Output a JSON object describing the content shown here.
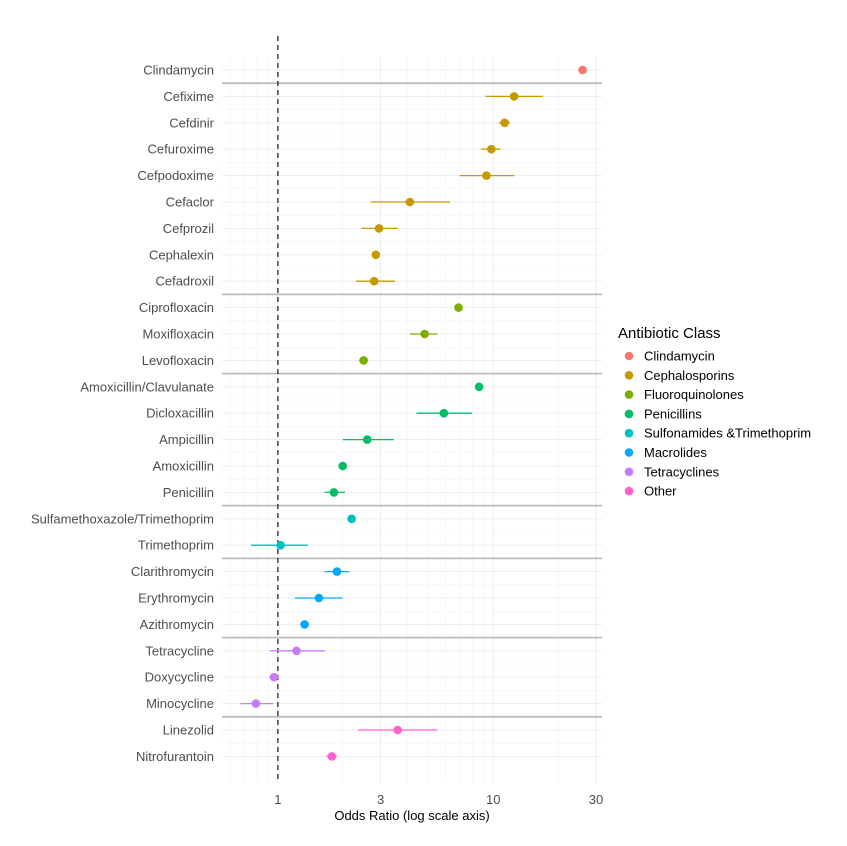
{
  "chart_data": {
    "type": "scatter",
    "subtype": "forest-plot",
    "title": "",
    "xlabel": "Odds Ratio (log scale axis)",
    "ylabel": "",
    "x_scale": "log",
    "xlim": [
      0.55,
      32
    ],
    "x_ticks": [
      1,
      3,
      10,
      30
    ],
    "x_tick_labels": [
      "1",
      "3",
      "10",
      "30"
    ],
    "reference_line": 1,
    "grid": true,
    "legend": {
      "title": "Antibiotic Class",
      "placement": "right",
      "entries": [
        {
          "name": "Clindamycin",
          "color": "#F8766D"
        },
        {
          "name": "Cephalosporins",
          "color": "#C49A00"
        },
        {
          "name": "Fluoroquinolones",
          "color": "#7CAE00"
        },
        {
          "name": "Penicillins",
          "color": "#00BE67"
        },
        {
          "name": "Sulfonamides &Trimethoprim",
          "color": "#00BFC4"
        },
        {
          "name": "Macrolides",
          "color": "#00A9FF"
        },
        {
          "name": "Tetracyclines",
          "color": "#C77CFF"
        },
        {
          "name": "Other",
          "color": "#FF61CC"
        }
      ]
    },
    "series": [
      {
        "name": "Clindamycin",
        "points": [
          {
            "label": "Clindamycin",
            "or": 26.0,
            "lo": 26.0,
            "hi": 26.0
          }
        ]
      },
      {
        "name": "Cephalosporins",
        "points": [
          {
            "label": "Cefixime",
            "or": 12.5,
            "lo": 9.2,
            "hi": 17.0
          },
          {
            "label": "Cefdinir",
            "or": 11.3,
            "lo": 10.6,
            "hi": 12.0
          },
          {
            "label": "Cefuroxime",
            "or": 9.8,
            "lo": 8.8,
            "hi": 10.8
          },
          {
            "label": "Cefpodoxime",
            "or": 9.3,
            "lo": 7.0,
            "hi": 12.5
          },
          {
            "label": "Cefaclor",
            "or": 4.1,
            "lo": 2.7,
            "hi": 6.3
          },
          {
            "label": "Cefprozil",
            "or": 2.95,
            "lo": 2.45,
            "hi": 3.6
          },
          {
            "label": "Cephalexin",
            "or": 2.85,
            "lo": 2.75,
            "hi": 2.95
          },
          {
            "label": "Cefadroxil",
            "or": 2.8,
            "lo": 2.3,
            "hi": 3.5
          }
        ]
      },
      {
        "name": "Fluoroquinolones",
        "points": [
          {
            "label": "Ciprofloxacin",
            "or": 6.9,
            "lo": 6.7,
            "hi": 7.1
          },
          {
            "label": "Moxifloxacin",
            "or": 4.8,
            "lo": 4.1,
            "hi": 5.5
          },
          {
            "label": "Levofloxacin",
            "or": 2.5,
            "lo": 2.38,
            "hi": 2.62
          }
        ]
      },
      {
        "name": "Penicillins",
        "points": [
          {
            "label": "Amoxicillin/Clavulanate",
            "or": 8.6,
            "lo": 8.4,
            "hi": 8.8
          },
          {
            "label": "Dicloxacillin",
            "or": 5.9,
            "lo": 4.4,
            "hi": 8.0
          },
          {
            "label": "Ampicillin",
            "or": 2.6,
            "lo": 2.0,
            "hi": 3.45
          },
          {
            "label": "Amoxicillin",
            "or": 2.0,
            "lo": 1.95,
            "hi": 2.05
          },
          {
            "label": "Penicillin",
            "or": 1.82,
            "lo": 1.65,
            "hi": 2.05
          }
        ]
      },
      {
        "name": "Sulfonamides &Trimethoprim",
        "points": [
          {
            "label": "Sulfamethoxazole/Trimethoprim",
            "or": 2.2,
            "lo": 2.12,
            "hi": 2.28
          },
          {
            "label": "Trimethoprim",
            "or": 1.03,
            "lo": 0.75,
            "hi": 1.38
          }
        ]
      },
      {
        "name": "Macrolides",
        "points": [
          {
            "label": "Clarithromycin",
            "or": 1.88,
            "lo": 1.65,
            "hi": 2.15
          },
          {
            "label": "Erythromycin",
            "or": 1.55,
            "lo": 1.2,
            "hi": 2.0
          },
          {
            "label": "Azithromycin",
            "or": 1.33,
            "lo": 1.28,
            "hi": 1.38
          }
        ]
      },
      {
        "name": "Tetracyclines",
        "points": [
          {
            "label": "Tetracycline",
            "or": 1.22,
            "lo": 0.92,
            "hi": 1.65
          },
          {
            "label": "Doxycycline",
            "or": 0.96,
            "lo": 0.91,
            "hi": 1.01
          },
          {
            "label": "Minocycline",
            "or": 0.79,
            "lo": 0.67,
            "hi": 0.95
          }
        ]
      },
      {
        "name": "Other",
        "points": [
          {
            "label": "Linezolid",
            "or": 3.6,
            "lo": 2.35,
            "hi": 5.5
          },
          {
            "label": "Nitrofurantoin",
            "or": 1.78,
            "lo": 1.68,
            "hi": 1.88
          }
        ]
      }
    ]
  }
}
